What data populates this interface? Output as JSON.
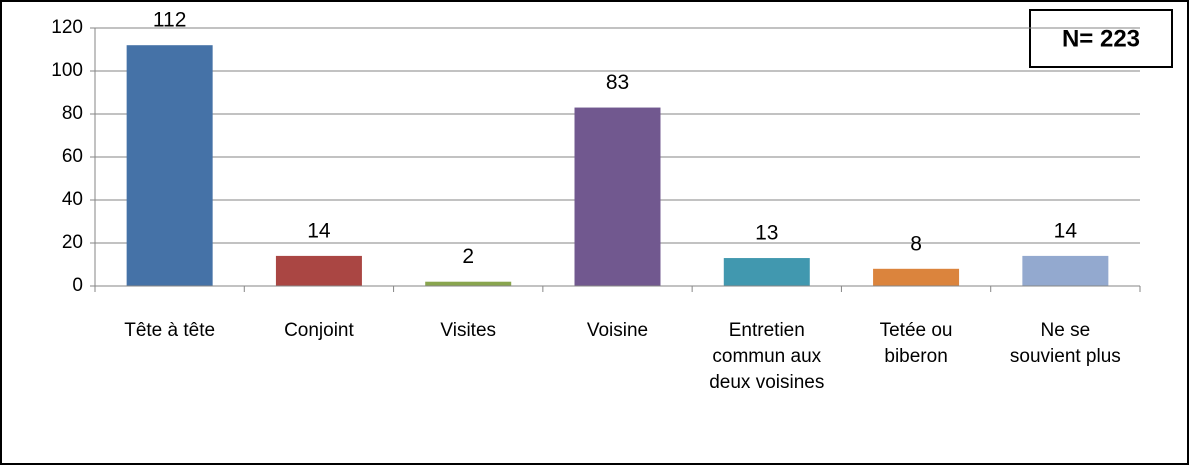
{
  "chart_data": {
    "type": "bar",
    "categories": [
      "Tête à tête",
      "Conjoint",
      "Visites",
      "Voisine",
      "Entretien commun aux deux voisines",
      "Tetée ou biberon",
      "Ne se souvient plus"
    ],
    "values": [
      112,
      14,
      2,
      83,
      13,
      8,
      14
    ],
    "colors": [
      "#4572a7",
      "#aa4643",
      "#89a54e",
      "#71588f",
      "#4198af",
      "#db843d",
      "#93a9cf"
    ],
    "ylim": [
      0,
      120
    ],
    "yticks": [
      0,
      20,
      40,
      60,
      80,
      100,
      120
    ],
    "grid": true,
    "annotation": "N= 223"
  }
}
